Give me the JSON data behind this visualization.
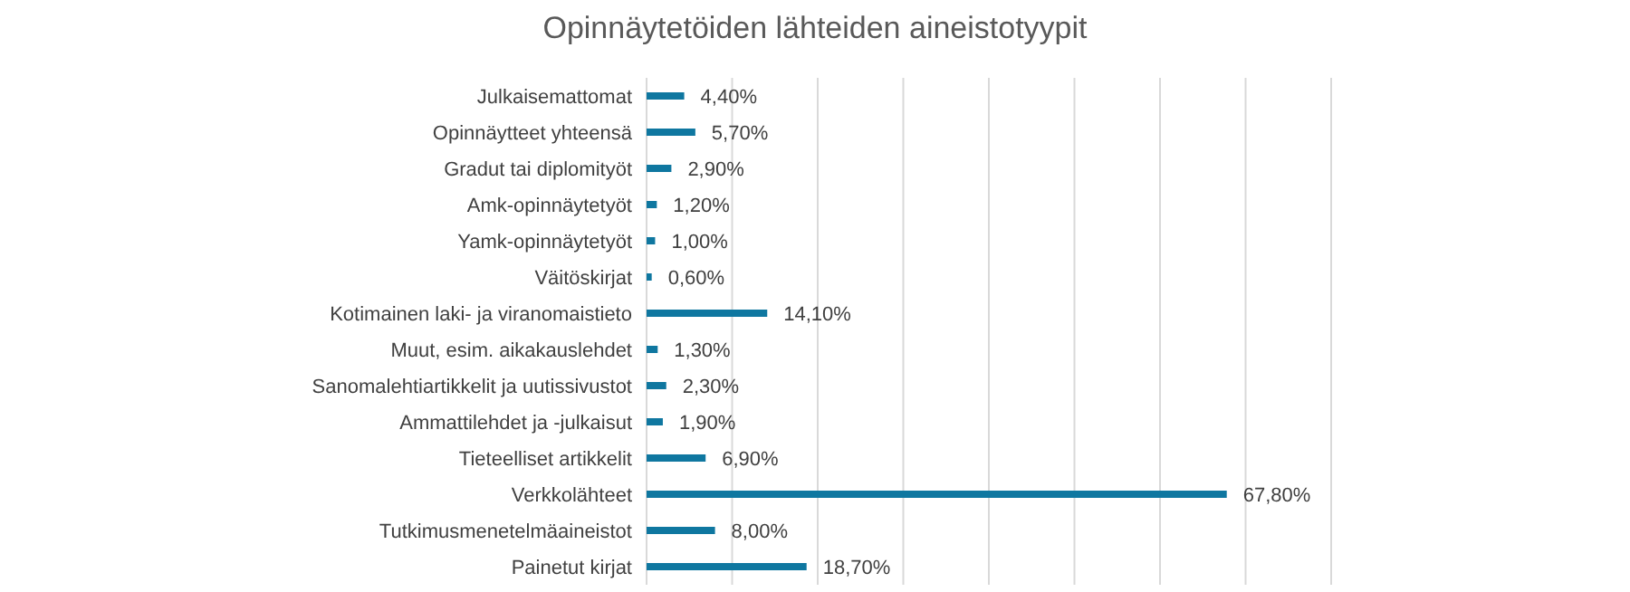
{
  "chart_data": {
    "type": "bar",
    "orientation": "horizontal",
    "title": "Opinnäytetöiden lähteiden aineistotyypit",
    "categories": [
      "Julkaisemattomat",
      "Opinnäytteet yhteensä",
      "Gradut tai diplomityöt",
      "Amk-opinnäytetyöt",
      "Yamk-opinnäytetyöt",
      "Väitöskirjat",
      "Kotimainen laki- ja viranomaistieto",
      "Muut, esim. aikakauslehdet",
      "Sanomalehtiartikkelit ja uutissivustot",
      "Ammattilehdet ja -julkaisut",
      "Tieteelliset artikkelit",
      "Verkkolähteet",
      "Tutkimusmenetelmäaineistot",
      "Painetut kirjat"
    ],
    "values": [
      4.4,
      5.7,
      2.9,
      1.2,
      1.0,
      0.6,
      14.1,
      1.3,
      2.3,
      1.9,
      6.9,
      67.8,
      8.0,
      18.7
    ],
    "value_labels": [
      "4,40%",
      "5,70%",
      "2,90%",
      "1,20%",
      "1,00%",
      "0,60%",
      "14,10%",
      "1,30%",
      "2,30%",
      "1,90%",
      "6,90%",
      "67,80%",
      "8,00%",
      "18,70%"
    ],
    "color": "#0f77a0",
    "xlim": [
      0,
      80
    ],
    "xticks": [
      {
        "value": 0,
        "label": null
      },
      {
        "value": 10,
        "label": null
      },
      {
        "value": 20,
        "label": null
      },
      {
        "value": 30,
        "label": null
      },
      {
        "value": 40,
        "label": null
      },
      {
        "value": 50,
        "label": null
      },
      {
        "value": 60,
        "label": null
      },
      {
        "value": 70,
        "label": null
      },
      {
        "value": 80,
        "label": null
      }
    ],
    "grid": "x",
    "tick_labels": "y"
  }
}
